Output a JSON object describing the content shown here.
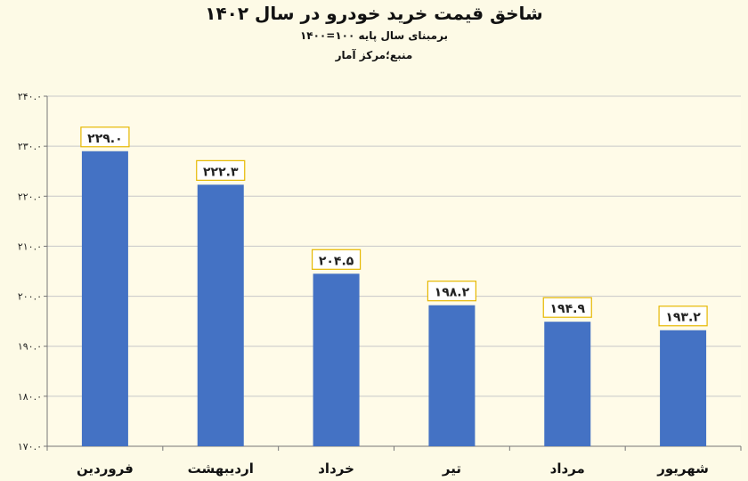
{
  "chart_data": {
    "type": "bar",
    "title": "شاخق قیمت خرید خودرو  در سال ۱۴۰۲",
    "subtitle": "برمبنای سال پایه ۱۰۰=۱۴۰۰",
    "source": "منبع؛مرکز آمار",
    "categories": [
      "فروردین",
      "اردیبهشت",
      "خرداد",
      "تیر",
      "مرداد",
      "شهریور"
    ],
    "values": [
      229.0,
      222.3,
      204.5,
      198.2,
      194.9,
      193.2
    ],
    "value_labels": [
      "۲۲۹.۰",
      "۲۲۲.۳",
      "۲۰۴.۵",
      "۱۹۸.۲",
      "۱۹۴.۹",
      "۱۹۳.۲"
    ],
    "y_ticks": [
      170,
      180,
      190,
      200,
      210,
      220,
      230,
      240
    ],
    "y_tick_labels": [
      "۱۷۰.۰",
      "۱۸۰.۰",
      "۱۹۰.۰",
      "۲۰۰.۰",
      "۲۱۰.۰",
      "۲۲۰.۰",
      "۲۳۰.۰",
      "۲۴۰.۰"
    ],
    "ylim": [
      170,
      240
    ],
    "grid": true,
    "bar_color": "#4472c4",
    "label_border_color": "#e6b800",
    "background_color": "#fdfae6"
  }
}
